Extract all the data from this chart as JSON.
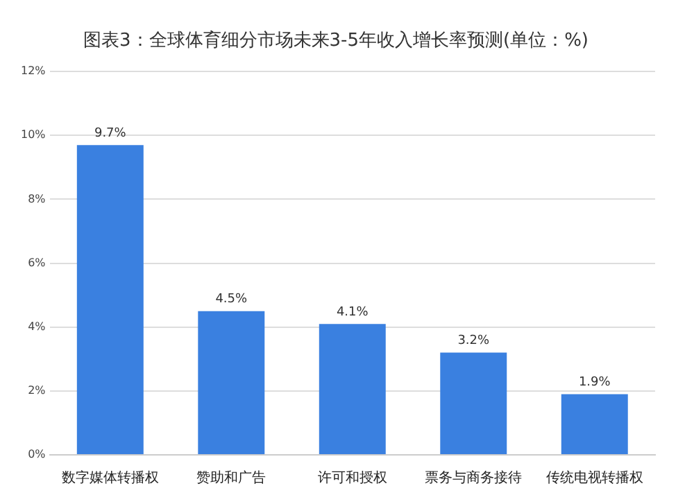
{
  "chart_data": {
    "type": "bar",
    "title": "图表3：全球体育细分市场未来3-5年收入增长率预测(单位：%)",
    "categories": [
      "数字媒体转播权",
      "赞助和广告",
      "许可和授权",
      "票务与商务接待",
      "传统电视转播权"
    ],
    "values": [
      9.7,
      4.5,
      4.1,
      3.2,
      1.9
    ],
    "value_labels": [
      "9.7%",
      "4.5%",
      "4.1%",
      "3.2%",
      "1.9%"
    ],
    "color": "#3a80e0",
    "ylim": [
      0,
      12
    ],
    "yticks": [
      {
        "value": 0,
        "label": "0%"
      },
      {
        "value": 2,
        "label": "2%"
      },
      {
        "value": 4,
        "label": "4%"
      },
      {
        "value": 6,
        "label": "6%"
      },
      {
        "value": 8,
        "label": "8%"
      },
      {
        "value": 10,
        "label": "10%"
      },
      {
        "value": 12,
        "label": "12%"
      }
    ],
    "grid": "y",
    "legend": false
  }
}
